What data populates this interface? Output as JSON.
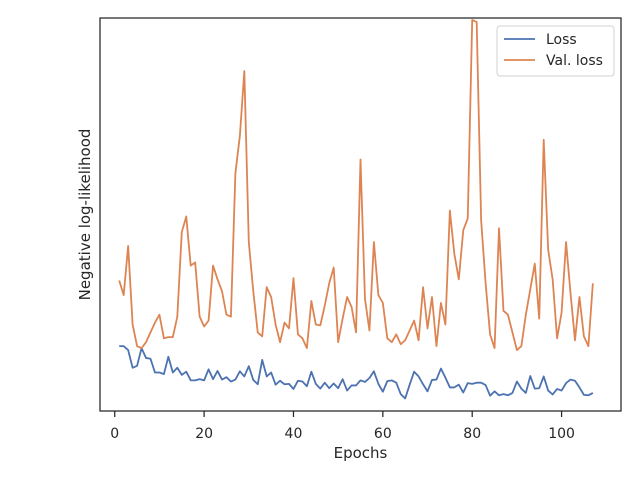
{
  "chart_data": {
    "type": "line",
    "title": "",
    "xlabel": "Epochs",
    "ylabel": "Negative log-likelihood",
    "xlim": [
      -3.3,
      113.3
    ],
    "ylim": [
      0,
      100
    ],
    "xticks": [
      0,
      20,
      40,
      60,
      80,
      100
    ],
    "xtick_labels": [
      "0",
      "20",
      "40",
      "60",
      "80",
      "100"
    ],
    "yticks_shown": false,
    "grid": false,
    "legend_position": "top-right",
    "x": [
      1,
      2,
      3,
      4,
      5,
      6,
      7,
      8,
      9,
      10,
      11,
      12,
      13,
      14,
      15,
      16,
      17,
      18,
      19,
      20,
      21,
      22,
      23,
      24,
      25,
      26,
      27,
      28,
      29,
      30,
      31,
      32,
      33,
      34,
      35,
      36,
      37,
      38,
      39,
      40,
      41,
      42,
      43,
      44,
      45,
      46,
      47,
      48,
      49,
      50,
      51,
      52,
      53,
      54,
      55,
      56,
      57,
      58,
      59,
      60,
      61,
      62,
      63,
      64,
      65,
      66,
      67,
      68,
      69,
      70,
      71,
      72,
      73,
      74,
      75,
      76,
      77,
      78,
      79,
      80,
      81,
      82,
      83,
      84,
      85,
      86,
      87,
      88,
      89,
      90,
      91,
      92,
      93,
      94,
      95,
      96,
      97,
      98,
      99,
      100,
      101,
      102,
      103,
      104,
      105,
      106,
      107
    ],
    "series": [
      {
        "name": "Loss",
        "color": "#4c72b0",
        "values": [
          16.5,
          16.5,
          15.5,
          11.0,
          11.5,
          16.0,
          13.5,
          13.3,
          9.8,
          9.8,
          9.4,
          13.8,
          9.8,
          11.0,
          9.2,
          10.0,
          7.8,
          7.8,
          8.1,
          7.8,
          10.6,
          8.1,
          10.2,
          8.0,
          8.6,
          7.5,
          8.0,
          10.1,
          8.8,
          11.4,
          7.9,
          6.8,
          13.0,
          8.8,
          9.8,
          6.7,
          7.7,
          6.8,
          6.9,
          5.6,
          7.7,
          7.5,
          6.3,
          10.0,
          6.9,
          5.7,
          7.2,
          5.8,
          7.0,
          5.8,
          8.1,
          5.2,
          6.5,
          6.5,
          7.8,
          7.4,
          8.4,
          10.1,
          6.9,
          4.9,
          7.6,
          7.8,
          7.2,
          4.3,
          3.2,
          6.7,
          10.0,
          8.8,
          6.8,
          5.0,
          7.9,
          8.0,
          10.8,
          8.5,
          6.0,
          6.0,
          6.7,
          4.7,
          7.1,
          6.9,
          7.2,
          7.2,
          6.6,
          3.9,
          5.0,
          4.0,
          4.3,
          4.0,
          4.6,
          7.5,
          5.7,
          4.6,
          8.9,
          5.7,
          5.8,
          8.8,
          5.2,
          4.2,
          5.6,
          5.2,
          7.1,
          8.0,
          7.7,
          6.0,
          4.1,
          4.0,
          4.6
        ]
      },
      {
        "name": "Val. loss",
        "color": "#dd8452",
        "values": [
          33.2,
          29.5,
          42.0,
          22.0,
          16.5,
          16.0,
          17.5,
          20.0,
          22.5,
          24.5,
          18.5,
          18.8,
          18.8,
          24.0,
          45.5,
          49.5,
          37.0,
          37.8,
          24.0,
          21.5,
          23.0,
          37.0,
          33.5,
          30.5,
          24.5,
          24.0,
          60.5,
          70.0,
          86.5,
          43.0,
          30.5,
          20.0,
          19.0,
          31.5,
          29.0,
          22.0,
          17.5,
          22.5,
          21.0,
          33.8,
          19.5,
          18.5,
          16.0,
          28.0,
          22.0,
          21.8,
          26.8,
          32.5,
          36.5,
          17.5,
          23.5,
          29.0,
          26.5,
          20.0,
          64.0,
          28.5,
          20.5,
          43.0,
          29.5,
          27.5,
          18.5,
          17.5,
          19.5,
          17.0,
          18.0,
          20.5,
          23.0,
          18.0,
          31.5,
          21.0,
          29.0,
          16.5,
          27.5,
          22.0,
          51.0,
          40.0,
          33.5,
          46.0,
          49.0,
          99.5,
          99.0,
          48.5,
          32.5,
          19.5,
          16.0,
          46.5,
          25.5,
          24.5,
          20.0,
          15.5,
          16.5,
          24.5,
          31.0,
          37.5,
          23.5,
          69.0,
          41.0,
          33.5,
          18.5,
          25.0,
          43.0,
          30.0,
          18.0,
          29.0,
          19.0,
          16.5,
          32.5
        ]
      }
    ]
  }
}
